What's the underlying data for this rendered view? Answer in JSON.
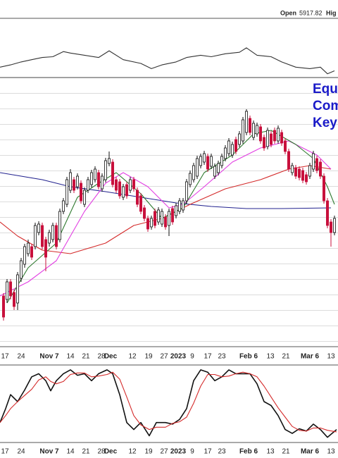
{
  "header": {
    "open_label": "Open",
    "open": 5917.82,
    "high_label": "Hig"
  },
  "chart_data": [
    {
      "type": "line",
      "xlim": [
        0,
        96
      ],
      "ylim": [
        28,
        104
      ],
      "levels": [
        70,
        50
      ],
      "series": [
        {
          "color": "#333333",
          "x": [
            0,
            3,
            6,
            9,
            12,
            15,
            18,
            20,
            24,
            28,
            31,
            35,
            40,
            43,
            46,
            50,
            53,
            57,
            60,
            64,
            68,
            70,
            73,
            77,
            80,
            84,
            88,
            91,
            93,
            95
          ],
          "values": [
            42,
            45,
            49,
            52,
            55,
            56,
            63,
            61,
            58,
            55,
            64,
            52,
            47,
            40,
            45,
            49,
            55,
            58,
            56,
            60,
            62,
            68,
            58,
            56,
            49,
            42,
            40,
            42,
            33,
            37
          ]
        }
      ]
    },
    {
      "type": "candlestick",
      "xlim": [
        0,
        96
      ],
      "ylim": [
        3516,
        4280
      ],
      "up_color": "#111111",
      "down_color": "#c8103c",
      "open": [
        3660,
        3650,
        3700,
        3670,
        3640,
        3710,
        3750,
        3780,
        3800,
        3800,
        3840,
        3860,
        3820,
        3810,
        3820,
        3860,
        3820,
        3900,
        3920,
        3960,
        3990,
        3970,
        3980,
        3920,
        3960,
        3976,
        3990,
        4010,
        3964,
        3990,
        4036,
        4040,
        3990,
        3984,
        3940,
        3976,
        3960,
        3990,
        3960,
        3944,
        3910,
        3880,
        3856,
        3900,
        3870,
        3864,
        3884,
        3860,
        3908,
        3888,
        3900,
        3904,
        3930,
        3976,
        3990,
        4000,
        4030,
        4040,
        4056,
        4028,
        4000,
        4010,
        4030,
        4050,
        4064,
        4060,
        4104,
        4090,
        4100,
        4124,
        4164,
        4110,
        4120,
        4140,
        4110,
        4084,
        4120,
        4130,
        4100,
        4124,
        4100,
        4070,
        4010,
        4024,
        4020,
        4016,
        4004,
        4000,
        4020,
        4050,
        4040,
        4000,
        3930,
        3870,
        3840
      ],
      "high": [
        3668,
        3708,
        3708,
        3678,
        3728,
        3768,
        3808,
        3820,
        3808,
        3868,
        3872,
        3868,
        3828,
        3848,
        3868,
        3868,
        3908,
        3938,
        3998,
        4020,
        3998,
        4008,
        3988,
        3968,
        3998,
        4018,
        4028,
        4018,
        4008,
        4052,
        4070,
        4048,
        3998,
        3992,
        3978,
        3984,
        3998,
        3998,
        3968,
        3952,
        3918,
        3888,
        3888,
        3908,
        3912,
        3908,
        3892,
        3908,
        3916,
        3924,
        3938,
        3938,
        3992,
        4016,
        4038,
        4058,
        4064,
        4072,
        4064,
        4064,
        4036,
        4044,
        4064,
        4088,
        4108,
        4098,
        4112,
        4128,
        4168,
        4190,
        4172,
        4158,
        4152,
        4148,
        4118,
        4138,
        4128,
        4138,
        4144,
        4132,
        4108,
        4078,
        4038,
        4032,
        4028,
        4024,
        4012,
        4038,
        4072,
        4058,
        4048,
        4008,
        3938,
        3878,
        3888
      ],
      "low": [
        3590,
        3640,
        3650,
        3620,
        3620,
        3700,
        3740,
        3772,
        3762,
        3792,
        3832,
        3792,
        3730,
        3800,
        3812,
        3792,
        3812,
        3892,
        3912,
        3952,
        3952,
        3962,
        3922,
        3912,
        3952,
        3968,
        3982,
        3962,
        3956,
        3982,
        4028,
        3968,
        3952,
        3936,
        3932,
        3936,
        3952,
        3956,
        3912,
        3892,
        3872,
        3842,
        3848,
        3852,
        3862,
        3856,
        3848,
        3830,
        3862,
        3880,
        3892,
        3896,
        3922,
        3968,
        3982,
        3992,
        4022,
        4032,
        4012,
        4020,
        3992,
        4002,
        4022,
        4042,
        4056,
        4052,
        4062,
        4082,
        4092,
        4116,
        4116,
        4102,
        4112,
        4092,
        4072,
        4076,
        4082,
        4092,
        4092,
        4086,
        4062,
        4012,
        4002,
        3992,
        3988,
        3980,
        3976,
        3992,
        4012,
        4008,
        3992,
        3922,
        3852,
        3800,
        3832
      ],
      "close": [
        3600,
        3700,
        3660,
        3630,
        3720,
        3760,
        3800,
        3810,
        3770,
        3860,
        3864,
        3800,
        3770,
        3840,
        3860,
        3800,
        3900,
        3930,
        3990,
        4010,
        3960,
        4000,
        3930,
        3960,
        3990,
        4010,
        4020,
        3970,
        4000,
        4044,
        4050,
        3976,
        3960,
        3944,
        3970,
        3944,
        3990,
        3964,
        3920,
        3900,
        3880,
        3850,
        3880,
        3860,
        3904,
        3900,
        3856,
        3900,
        3870,
        3916,
        3930,
        3930,
        3984,
        4008,
        4030,
        4050,
        4056,
        4064,
        4020,
        4056,
        4028,
        4036,
        4056,
        4080,
        4100,
        4090,
        4070,
        4120,
        4160,
        4184,
        4124,
        4150,
        4144,
        4100,
        4080,
        4130,
        4090,
        4100,
        4136,
        4094,
        4070,
        4020,
        4030,
        4000,
        3996,
        3988,
        3984,
        4030,
        4064,
        4016,
        4000,
        3930,
        3860,
        3840,
        3880
      ],
      "overlays": [
        {
          "color": "#23238f",
          "x": [
            0,
            12,
            20,
            30,
            40,
            50,
            60,
            70,
            80,
            94
          ],
          "values": [
            4010,
            3990,
            3970,
            3956,
            3940,
            3924,
            3914,
            3908,
            3908,
            3910
          ]
        },
        {
          "color": "#d42a2a",
          "x": [
            0,
            5,
            12,
            20,
            30,
            38,
            46,
            54,
            64,
            74,
            82,
            88,
            94
          ],
          "values": [
            3870,
            3830,
            3790,
            3780,
            3810,
            3860,
            3880,
            3920,
            3964,
            3990,
            4020,
            4030,
            4020
          ]
        },
        {
          "color": "#e23ee2",
          "x": [
            0,
            8,
            16,
            24,
            30,
            35,
            42,
            48,
            52,
            58,
            66,
            74,
            82,
            90,
            94
          ],
          "values": [
            3660,
            3700,
            3760,
            3900,
            3980,
            4010,
            3970,
            3910,
            3920,
            3970,
            4040,
            4080,
            4100,
            4060,
            4020
          ]
        },
        {
          "color": "#2f7a2f",
          "x": [
            2,
            8,
            16,
            22,
            28,
            33,
            40,
            46,
            52,
            58,
            66,
            72,
            77,
            84,
            89,
            93,
            95
          ],
          "values": [
            3640,
            3740,
            3810,
            3940,
            3980,
            4010,
            3950,
            3880,
            3910,
            4010,
            4060,
            4120,
            4130,
            4090,
            4050,
            3970,
            3920
          ]
        }
      ],
      "annotations": [
        "Equ",
        "Com",
        "Key"
      ],
      "annotation_color": "#1a1ac8",
      "xticks": [
        {
          "value": 1.4,
          "label": "17"
        },
        {
          "value": 6,
          "label": "24"
        },
        {
          "value": 14,
          "label": "Nov 7"
        },
        {
          "value": 20,
          "label": "14"
        },
        {
          "value": 24.4,
          "label": "21"
        },
        {
          "value": 28.8,
          "label": "28"
        },
        {
          "value": 31.4,
          "label": "Dec"
        },
        {
          "value": 37.6,
          "label": "12"
        },
        {
          "value": 42.2,
          "label": "19"
        },
        {
          "value": 46.6,
          "label": "27"
        },
        {
          "value": 50.6,
          "label": "2023"
        },
        {
          "value": 54.6,
          "label": "9"
        },
        {
          "value": 59,
          "label": "17"
        },
        {
          "value": 63,
          "label": "23"
        },
        {
          "value": 70.6,
          "label": "Feb 6"
        },
        {
          "value": 76.8,
          "label": "13"
        },
        {
          "value": 81.2,
          "label": "21"
        },
        {
          "value": 88,
          "label": "Mar 6"
        },
        {
          "value": 94,
          "label": "13"
        }
      ]
    },
    {
      "type": "line",
      "xlim": [
        0,
        96
      ],
      "ylim": [
        4,
        104
      ],
      "levels": [
        80,
        50,
        20
      ],
      "series": [
        {
          "color": "#111111",
          "x": [
            0,
            1.6,
            3,
            5,
            7,
            9,
            11,
            13,
            14.4,
            16,
            18,
            20,
            22,
            24,
            26,
            28,
            30.4,
            32,
            34,
            36,
            38,
            40,
            42.4,
            44.4,
            47,
            49,
            51,
            53,
            55,
            57,
            59,
            61,
            63,
            65,
            67,
            69,
            71,
            73,
            75,
            77,
            79,
            81,
            83,
            85,
            87,
            89,
            91,
            93,
            95.6
          ],
          "values": [
            27,
            45,
            63,
            54,
            69,
            86,
            90,
            81,
            68,
            81,
            90,
            95,
            88,
            90,
            81,
            90,
            95,
            90,
            63,
            27,
            18,
            27,
            10,
            27,
            27,
            25,
            31,
            45,
            81,
            95,
            92,
            81,
            86,
            95,
            90,
            90,
            90,
            77,
            54,
            49,
            36,
            18,
            13,
            19,
            16,
            25,
            18,
            8,
            18
          ]
        },
        {
          "color": "#d42a2a",
          "x": [
            0,
            1.6,
            3,
            5,
            7,
            9,
            11,
            13,
            14.4,
            16,
            18,
            20,
            22,
            24,
            26,
            28,
            30.4,
            32,
            34,
            36,
            38,
            40,
            42.4,
            44.4,
            47,
            49,
            51,
            53,
            55,
            57,
            59,
            61,
            63,
            65,
            67,
            69,
            71,
            73,
            75,
            77,
            79,
            81,
            83,
            85,
            87,
            89,
            91,
            93,
            95.6
          ],
          "values": [
            27,
            36,
            45,
            54,
            62,
            70,
            82,
            86,
            80,
            77,
            80,
            89,
            91,
            91,
            86,
            87,
            89,
            92,
            83,
            60,
            36,
            24,
            18,
            21,
            21,
            26,
            28,
            34,
            52,
            74,
            89,
            89,
            86,
            87,
            90,
            92,
            90,
            86,
            74,
            60,
            46,
            34,
            22,
            17,
            16,
            20,
            20,
            17,
            15
          ]
        }
      ]
    }
  ]
}
